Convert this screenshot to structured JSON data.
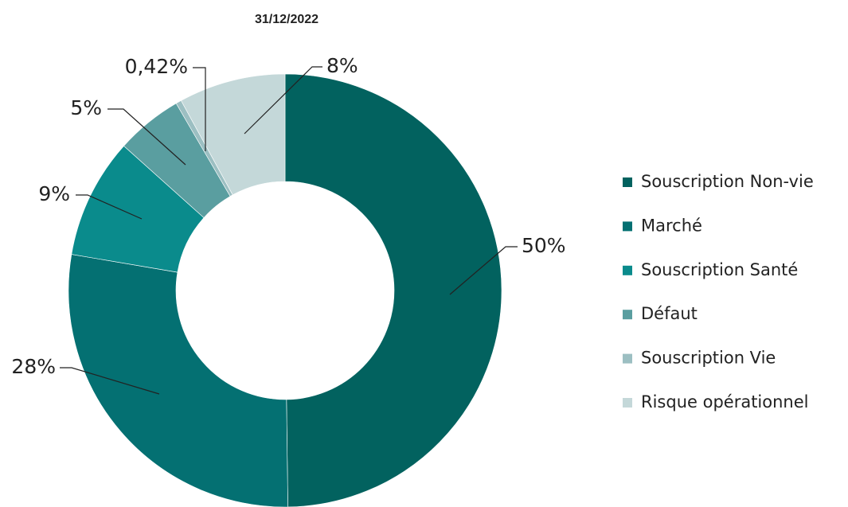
{
  "chart_data": {
    "type": "donut",
    "title": "31/12/2022",
    "categories": [
      "Souscription Non-vie",
      "Marché",
      "Souscription Santé",
      "Défaut",
      "Souscription Vie",
      "Risque opérationnel"
    ],
    "values": [
      50,
      28,
      9,
      5,
      0.42,
      8
    ],
    "value_labels": [
      "50%",
      "28%",
      "9%",
      "5%",
      "0,42%",
      "8%"
    ],
    "colors": [
      "#02625f",
      "#047072",
      "#0a8b8c",
      "#5a9ea0",
      "#9cbfc2",
      "#c4d8d9"
    ],
    "legend": "right"
  }
}
